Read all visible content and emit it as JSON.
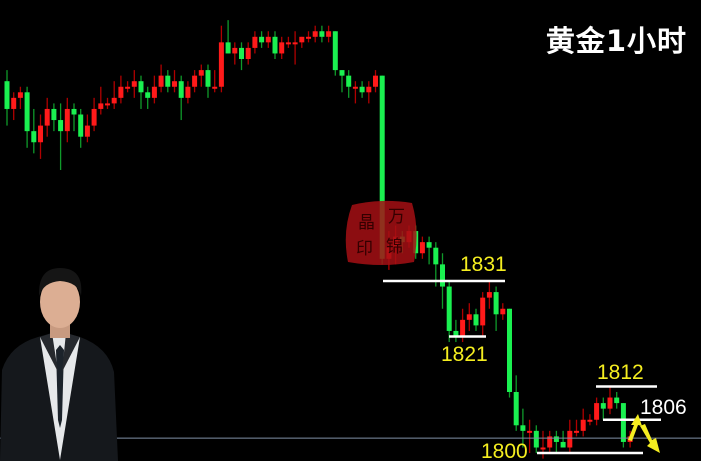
{
  "title": "黄金1小时",
  "colors": {
    "background": "#000000",
    "bull": "#ff1a1a",
    "bull_wick": "#b00000",
    "bear": "#1af050",
    "bear_wick": "#0f9a2a",
    "label": "#f5ee20",
    "label_alt": "#ffffff",
    "level_line": "#ffffff",
    "price_line": "#7f8fa6",
    "arrow": "#f5ee20"
  },
  "stamp": {
    "text": "晶万印锦"
  },
  "chart_data": {
    "type": "candlestick",
    "title": "黄金1小时",
    "up_color_convention": "red up / green down",
    "ohlc": [
      [
        1867,
        1869,
        1859,
        1862
      ],
      [
        1862,
        1865,
        1860,
        1864
      ],
      [
        1864,
        1866,
        1862,
        1865
      ],
      [
        1865,
        1866,
        1855,
        1858
      ],
      [
        1858,
        1862,
        1854,
        1856
      ],
      [
        1856,
        1861,
        1853,
        1859
      ],
      [
        1859,
        1864,
        1857,
        1862
      ],
      [
        1862,
        1863,
        1858,
        1860
      ],
      [
        1860,
        1863,
        1851,
        1858
      ],
      [
        1858,
        1864,
        1856,
        1862
      ],
      [
        1862,
        1863,
        1858,
        1861
      ],
      [
        1861,
        1862,
        1855,
        1857
      ],
      [
        1857,
        1861,
        1856,
        1859
      ],
      [
        1859,
        1864,
        1858,
        1862
      ],
      [
        1862,
        1866,
        1861,
        1863
      ],
      [
        1863,
        1864,
        1862,
        1863
      ],
      [
        1863,
        1867,
        1862,
        1864
      ],
      [
        1864,
        1868,
        1863,
        1866
      ],
      [
        1866,
        1867,
        1865,
        1866
      ],
      [
        1866,
        1869,
        1864,
        1867
      ],
      [
        1867,
        1868,
        1862,
        1865
      ],
      [
        1865,
        1866,
        1862,
        1864
      ],
      [
        1864,
        1868,
        1863,
        1866
      ],
      [
        1866,
        1870,
        1865,
        1868
      ],
      [
        1868,
        1869,
        1865,
        1866
      ],
      [
        1866,
        1869,
        1865,
        1867
      ],
      [
        1867,
        1868,
        1860,
        1864
      ],
      [
        1864,
        1867,
        1863,
        1866
      ],
      [
        1866,
        1869,
        1865,
        1868
      ],
      [
        1868,
        1870,
        1866,
        1869
      ],
      [
        1869,
        1870,
        1864,
        1866
      ],
      [
        1866,
        1869,
        1865,
        1866
      ],
      [
        1866,
        1877,
        1865,
        1874
      ],
      [
        1874,
        1878,
        1872,
        1872
      ],
      [
        1872,
        1874,
        1870,
        1873
      ],
      [
        1873,
        1874,
        1869,
        1871
      ],
      [
        1871,
        1874,
        1870,
        1873
      ],
      [
        1873,
        1876,
        1872,
        1875
      ],
      [
        1875,
        1876,
        1873,
        1874
      ],
      [
        1874,
        1876,
        1873,
        1875
      ],
      [
        1875,
        1876,
        1871,
        1872
      ],
      [
        1872,
        1875,
        1871,
        1874
      ],
      [
        1874,
        1875,
        1873,
        1874
      ],
      [
        1874,
        1876,
        1870,
        1874
      ],
      [
        1874,
        1875,
        1873,
        1875
      ],
      [
        1875,
        1876,
        1874,
        1875
      ],
      [
        1875,
        1877,
        1874,
        1876
      ],
      [
        1876,
        1877,
        1874,
        1875
      ],
      [
        1875,
        1877,
        1874,
        1876
      ],
      [
        1876,
        1876,
        1868,
        1869
      ],
      [
        1869,
        1869,
        1865,
        1868
      ],
      [
        1868,
        1869,
        1864,
        1866
      ],
      [
        1866,
        1867,
        1863,
        1866
      ],
      [
        1866,
        1867,
        1864,
        1865
      ],
      [
        1865,
        1867,
        1863,
        1866
      ],
      [
        1866,
        1869,
        1865,
        1868
      ],
      [
        1868,
        1868,
        1834,
        1835
      ],
      [
        1835,
        1840,
        1833,
        1837
      ],
      [
        1837,
        1841,
        1834,
        1839
      ],
      [
        1839,
        1840,
        1836,
        1838
      ],
      [
        1838,
        1841,
        1837,
        1840
      ],
      [
        1840,
        1841,
        1835,
        1836
      ],
      [
        1836,
        1839,
        1835,
        1838
      ],
      [
        1838,
        1839,
        1834,
        1837
      ],
      [
        1837,
        1838,
        1830,
        1834
      ],
      [
        1834,
        1836,
        1826,
        1830
      ],
      [
        1830,
        1831,
        1820,
        1822
      ],
      [
        1822,
        1824,
        1820,
        1821
      ],
      [
        1821,
        1826,
        1820,
        1824
      ],
      [
        1824,
        1827,
        1822,
        1825
      ],
      [
        1825,
        1826,
        1822,
        1823
      ],
      [
        1823,
        1829,
        1821,
        1828
      ],
      [
        1828,
        1831,
        1826,
        1829
      ],
      [
        1829,
        1830,
        1822,
        1825
      ],
      [
        1825,
        1827,
        1824,
        1826
      ],
      [
        1826,
        1826,
        1810,
        1811
      ],
      [
        1811,
        1814,
        1804,
        1805
      ],
      [
        1805,
        1808,
        1801,
        1804
      ],
      [
        1804,
        1806,
        1800,
        1804
      ],
      [
        1804,
        1805,
        1800,
        1801
      ],
      [
        1801,
        1804,
        1799,
        1801
      ],
      [
        1801,
        1804,
        1800,
        1803
      ],
      [
        1803,
        1804,
        1800,
        1802
      ],
      [
        1802,
        1804,
        1801,
        1801
      ],
      [
        1801,
        1806,
        1800,
        1804
      ],
      [
        1804,
        1806,
        1803,
        1804
      ],
      [
        1804,
        1808,
        1803,
        1806
      ],
      [
        1806,
        1807,
        1805,
        1806
      ],
      [
        1806,
        1810,
        1805,
        1809
      ],
      [
        1809,
        1810,
        1806,
        1808
      ],
      [
        1808,
        1812,
        1807,
        1810
      ],
      [
        1810,
        1811,
        1808,
        1809
      ],
      [
        1809,
        1809,
        1801,
        1802
      ],
      [
        1802,
        1804,
        1801,
        1803
      ]
    ],
    "current_price": 1802.7,
    "levels": [
      {
        "value": 1831,
        "label": "1831",
        "color": "#f5ee20"
      },
      {
        "value": 1821,
        "label": "1821",
        "color": "#f5ee20"
      },
      {
        "value": 1812,
        "label": "1812",
        "color": "#f5ee20"
      },
      {
        "value": 1806,
        "label": "1806",
        "color": "#ffffff"
      },
      {
        "value": 1800,
        "label": "1800",
        "color": "#f5ee20"
      }
    ],
    "grid": false,
    "axes_visible": false
  }
}
